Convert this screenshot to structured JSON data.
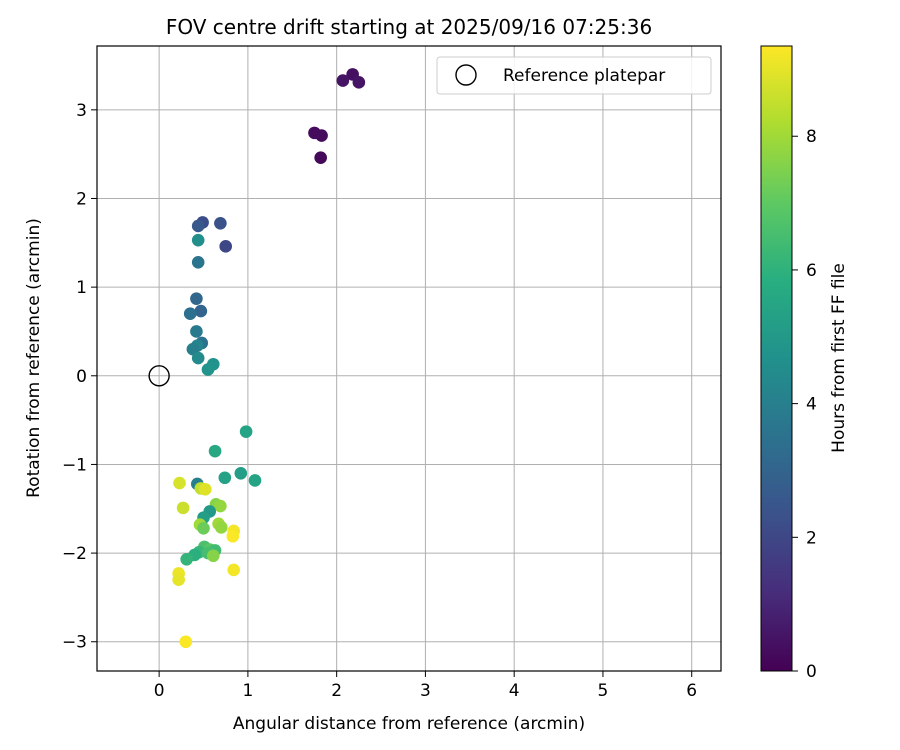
{
  "chart_data": {
    "type": "scatter",
    "title": "FOV centre drift starting at 2025/09/16 07:25:36",
    "xlabel": "Angular distance from reference (arcmin)",
    "ylabel": "Rotation from reference (arcmin)",
    "xlim": [
      -0.7,
      6.33
    ],
    "ylim": [
      -3.33,
      3.72
    ],
    "xticks": [
      0,
      1,
      2,
      3,
      4,
      5,
      6
    ],
    "yticks": [
      -3,
      -2,
      -1,
      0,
      1,
      2,
      3
    ],
    "grid": true,
    "legend": {
      "position": "top-right",
      "entries": [
        "Reference platepar"
      ]
    },
    "reference_point": {
      "x": 0,
      "y": 0,
      "marker": "open-circle"
    },
    "colorbar": {
      "label": "Hours from first FF file",
      "range": [
        0,
        9.35
      ],
      "ticks": [
        0,
        2,
        4,
        6,
        8
      ],
      "colormap": "viridis"
    },
    "points": [
      {
        "x": 2.18,
        "y": 3.4,
        "c": 0.4
      },
      {
        "x": 2.07,
        "y": 3.33,
        "c": 0.5
      },
      {
        "x": 2.25,
        "y": 3.31,
        "c": 0.5
      },
      {
        "x": 1.75,
        "y": 2.74,
        "c": 0.3
      },
      {
        "x": 1.83,
        "y": 2.71,
        "c": 0.3
      },
      {
        "x": 1.82,
        "y": 2.46,
        "c": 0.2
      },
      {
        "x": 0.49,
        "y": 1.73,
        "c": 2.2
      },
      {
        "x": 0.69,
        "y": 1.72,
        "c": 2.3
      },
      {
        "x": 0.44,
        "y": 1.69,
        "c": 2.6
      },
      {
        "x": 0.75,
        "y": 1.46,
        "c": 2.0
      },
      {
        "x": 0.44,
        "y": 1.53,
        "c": 4.6
      },
      {
        "x": 0.44,
        "y": 1.28,
        "c": 3.6
      },
      {
        "x": 0.42,
        "y": 0.87,
        "c": 3.1
      },
      {
        "x": 0.47,
        "y": 0.73,
        "c": 3.0
      },
      {
        "x": 0.35,
        "y": 0.7,
        "c": 3.4
      },
      {
        "x": 0.42,
        "y": 0.5,
        "c": 3.8
      },
      {
        "x": 0.48,
        "y": 0.37,
        "c": 3.5
      },
      {
        "x": 0.43,
        "y": 0.34,
        "c": 4.2
      },
      {
        "x": 0.38,
        "y": 0.3,
        "c": 4.0
      },
      {
        "x": 0.44,
        "y": 0.2,
        "c": 4.4
      },
      {
        "x": 0.61,
        "y": 0.13,
        "c": 4.7
      },
      {
        "x": 0.55,
        "y": 0.07,
        "c": 4.8
      },
      {
        "x": 0.98,
        "y": -0.63,
        "c": 5.4
      },
      {
        "x": 0.63,
        "y": -0.85,
        "c": 5.6
      },
      {
        "x": 0.92,
        "y": -1.1,
        "c": 5.2
      },
      {
        "x": 0.74,
        "y": -1.15,
        "c": 5.3
      },
      {
        "x": 1.08,
        "y": -1.18,
        "c": 5.4
      },
      {
        "x": 0.43,
        "y": -1.22,
        "c": 4.0
      },
      {
        "x": 0.23,
        "y": -1.21,
        "c": 8.8
      },
      {
        "x": 0.47,
        "y": -1.27,
        "c": 8.5
      },
      {
        "x": 0.52,
        "y": -1.28,
        "c": 8.9
      },
      {
        "x": 0.27,
        "y": -1.49,
        "c": 8.6
      },
      {
        "x": 0.64,
        "y": -1.45,
        "c": 7.6
      },
      {
        "x": 0.69,
        "y": -1.47,
        "c": 7.8
      },
      {
        "x": 0.57,
        "y": -1.53,
        "c": 5.0
      },
      {
        "x": 0.5,
        "y": -1.6,
        "c": 5.2
      },
      {
        "x": 0.46,
        "y": -1.68,
        "c": 8.0
      },
      {
        "x": 0.67,
        "y": -1.67,
        "c": 8.0
      },
      {
        "x": 0.5,
        "y": -1.72,
        "c": 7.2
      },
      {
        "x": 0.7,
        "y": -1.71,
        "c": 7.8
      },
      {
        "x": 0.84,
        "y": -1.75,
        "c": 9.2
      },
      {
        "x": 0.83,
        "y": -1.81,
        "c": 9.3
      },
      {
        "x": 0.51,
        "y": -1.93,
        "c": 6.6
      },
      {
        "x": 0.57,
        "y": -1.96,
        "c": 6.9
      },
      {
        "x": 0.63,
        "y": -1.97,
        "c": 6.4
      },
      {
        "x": 0.45,
        "y": -1.99,
        "c": 6.2
      },
      {
        "x": 0.55,
        "y": -2.0,
        "c": 6.5
      },
      {
        "x": 0.4,
        "y": -2.02,
        "c": 5.9
      },
      {
        "x": 0.61,
        "y": -2.03,
        "c": 7.6
      },
      {
        "x": 0.31,
        "y": -2.07,
        "c": 6.1
      },
      {
        "x": 0.84,
        "y": -2.19,
        "c": 9.2
      },
      {
        "x": 0.22,
        "y": -2.23,
        "c": 9.1
      },
      {
        "x": 0.22,
        "y": -2.3,
        "c": 9.0
      },
      {
        "x": 0.3,
        "y": -3.0,
        "c": 9.3
      }
    ]
  }
}
